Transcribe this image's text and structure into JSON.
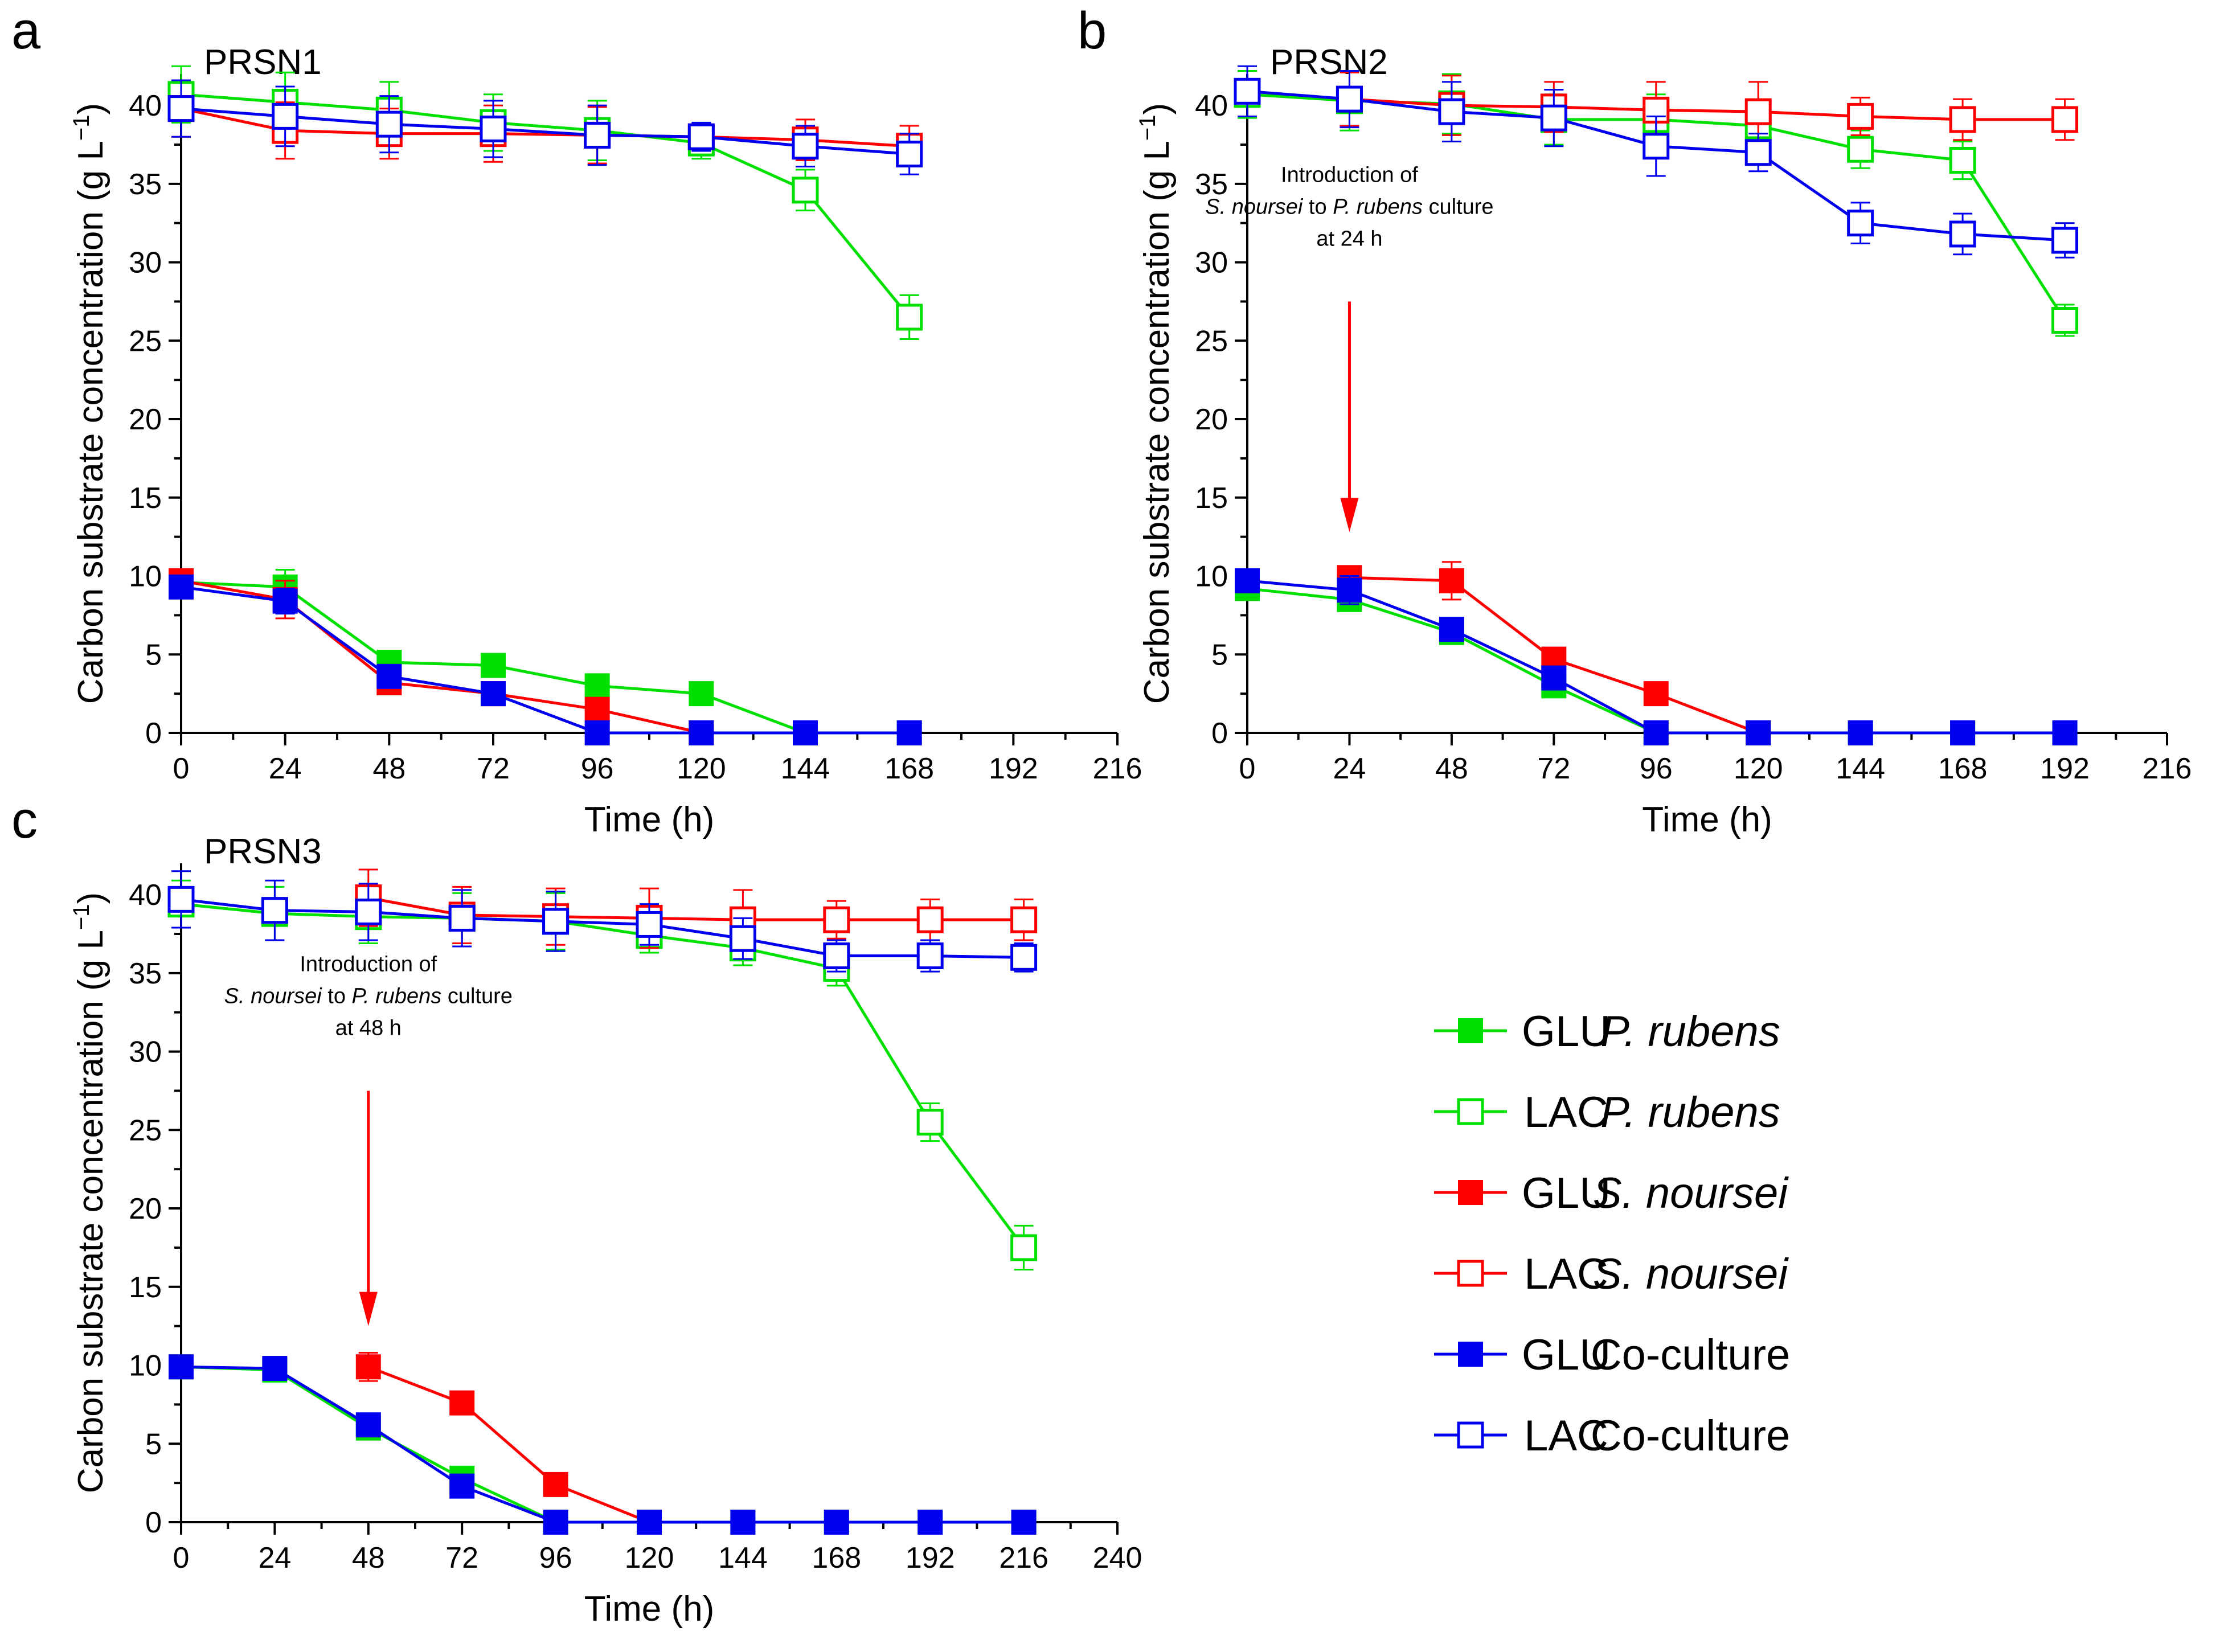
{
  "figure": {
    "legend": {
      "entries": [
        {
          "substrate": "GLU",
          "organism": "P. rubens",
          "color": "#00e000",
          "filled": true
        },
        {
          "substrate": "LAC",
          "organism": "P. rubens",
          "color": "#00e000",
          "filled": false
        },
        {
          "substrate": "GLU",
          "organism": "S. noursei",
          "color": "#ff0000",
          "filled": true
        },
        {
          "substrate": "LAC",
          "organism": "S. noursei",
          "color": "#ff0000",
          "filled": false
        },
        {
          "substrate": "GLU",
          "organism": "Co-culture",
          "color": "#0000ee",
          "filled": true
        },
        {
          "substrate": "LAC",
          "organism": "Co-culture",
          "color": "#0000ee",
          "filled": false
        }
      ]
    }
  },
  "chart_data": [
    {
      "type": "line",
      "panel_letter": "a",
      "title": "PRSN1",
      "xlabel": "Time (h)",
      "ylabel_text": "Carbon substrate concentration (g L",
      "ylabel_sup": "−1",
      "ylabel_close": ")",
      "xlim": [
        0,
        216
      ],
      "ylim": [
        0,
        42
      ],
      "xticks": [
        0,
        24,
        48,
        72,
        96,
        120,
        144,
        168,
        192,
        216
      ],
      "yticks": [
        0,
        5,
        10,
        15,
        20,
        25,
        30,
        35,
        40
      ],
      "annotation": null,
      "series": [
        {
          "name": "GLU P. rubens",
          "color": "#00e000",
          "filled": true,
          "x": [
            0,
            24,
            48,
            72,
            96,
            120,
            144,
            168
          ],
          "y": [
            9.6,
            9.3,
            4.5,
            4.3,
            3.0,
            2.5,
            0.0,
            0.0
          ],
          "err": [
            0.5,
            1.1,
            0.3,
            0.3,
            0.3,
            0.3,
            0,
            0
          ]
        },
        {
          "name": "LAC P. rubens",
          "color": "#00e000",
          "filled": false,
          "x": [
            0,
            24,
            48,
            72,
            96,
            120,
            144,
            168
          ],
          "y": [
            40.7,
            40.2,
            39.7,
            38.9,
            38.4,
            37.6,
            34.6,
            26.5
          ],
          "err": [
            1.8,
            1.9,
            1.8,
            1.8,
            1.9,
            1.0,
            1.3,
            1.4
          ]
        },
        {
          "name": "GLU S. noursei",
          "color": "#ff0000",
          "filled": true,
          "x": [
            0,
            24,
            48,
            72,
            96,
            120
          ],
          "y": [
            9.7,
            8.5,
            3.2,
            2.5,
            1.5,
            0.0
          ],
          "err": [
            0.5,
            1.2,
            0.3,
            0.3,
            0.3,
            0
          ]
        },
        {
          "name": "LAC S. noursei",
          "color": "#ff0000",
          "filled": false,
          "x": [
            0,
            24,
            48,
            72,
            96,
            120,
            144,
            168
          ],
          "y": [
            39.8,
            38.4,
            38.2,
            38.2,
            38.1,
            38.0,
            37.8,
            37.4
          ],
          "err": [
            1.8,
            1.8,
            1.6,
            1.8,
            1.8,
            0.8,
            1.3,
            1.3
          ]
        },
        {
          "name": "GLU Co-culture",
          "color": "#0000ee",
          "filled": true,
          "x": [
            0,
            24,
            48,
            72,
            96,
            120,
            144,
            168
          ],
          "y": [
            9.3,
            8.4,
            3.6,
            2.5,
            0.0,
            0.0,
            0.0,
            0.0
          ],
          "err": [
            0.5,
            0.8,
            0.3,
            0.3,
            0,
            0,
            0,
            0
          ]
        },
        {
          "name": "LAC Co-culture",
          "color": "#0000ee",
          "filled": false,
          "x": [
            0,
            24,
            48,
            72,
            96,
            120,
            144,
            168
          ],
          "y": [
            39.8,
            39.3,
            38.8,
            38.5,
            38.1,
            38.0,
            37.4,
            36.9
          ],
          "err": [
            1.8,
            1.9,
            1.8,
            1.8,
            1.9,
            0.9,
            1.3,
            1.3
          ]
        }
      ]
    },
    {
      "type": "line",
      "panel_letter": "b",
      "title": "PRSN2",
      "xlabel": "Time (h)",
      "ylabel_text": "Carbon substrate concentration (g L",
      "ylabel_sup": "−1",
      "ylabel_close": ")",
      "xlim": [
        0,
        216
      ],
      "ylim": [
        0,
        42
      ],
      "xticks": [
        0,
        24,
        48,
        72,
        96,
        120,
        144,
        168,
        192,
        216
      ],
      "yticks": [
        0,
        5,
        10,
        15,
        20,
        25,
        30,
        35,
        40
      ],
      "annotation": {
        "lines": [
          [
            {
              "text": "Introduction of",
              "italic": false
            }
          ],
          [
            {
              "text": "S. noursei",
              "italic": true
            },
            {
              "text": " to ",
              "italic": false
            },
            {
              "text": "P. rubens",
              "italic": true
            },
            {
              "text": " culture",
              "italic": false
            }
          ],
          [
            {
              "text": "at 24 h",
              "italic": false
            }
          ]
        ],
        "arrow_x": 24,
        "arrow_from_y": 27.5,
        "arrow_to_y": 12.8,
        "text_x": 24,
        "text_y": 31.5
      },
      "series": [
        {
          "name": "GLU P. rubens",
          "color": "#00e000",
          "filled": true,
          "x": [
            0,
            24,
            48,
            72,
            96,
            120,
            144,
            168,
            192
          ],
          "y": [
            9.2,
            8.5,
            6.4,
            3.0,
            0.0,
            0.0,
            0.0,
            0.0,
            0.0
          ],
          "err": [
            0.5,
            0.6,
            0.4,
            0.3,
            0,
            0,
            0,
            0,
            0
          ]
        },
        {
          "name": "LAC P. rubens",
          "color": "#00e000",
          "filled": false,
          "x": [
            0,
            24,
            48,
            72,
            96,
            120,
            144,
            168,
            192
          ],
          "y": [
            40.7,
            40.3,
            40.1,
            39.1,
            39.1,
            38.7,
            37.2,
            36.5,
            26.3
          ],
          "err": [
            1.5,
            1.9,
            1.9,
            1.6,
            1.6,
            1.6,
            1.2,
            1.2,
            1.0
          ]
        },
        {
          "name": "GLU S. noursei",
          "color": "#ff0000",
          "filled": true,
          "x": [
            24,
            48,
            72,
            96,
            120
          ],
          "y": [
            9.9,
            9.7,
            4.7,
            2.5,
            0.0
          ],
          "err": [
            0.7,
            1.2,
            0.3,
            0.3,
            0
          ]
        },
        {
          "name": "LAC S. noursei",
          "color": "#ff0000",
          "filled": false,
          "x": [
            24,
            48,
            72,
            96,
            120,
            144,
            168,
            192
          ],
          "y": [
            40.4,
            40.0,
            39.9,
            39.7,
            39.6,
            39.3,
            39.1,
            39.1
          ],
          "err": [
            1.7,
            1.9,
            1.6,
            1.8,
            1.9,
            1.2,
            1.3,
            1.3
          ]
        },
        {
          "name": "GLU Co-culture",
          "color": "#0000ee",
          "filled": true,
          "x": [
            0,
            24,
            48,
            72,
            96,
            120,
            144,
            168,
            192
          ],
          "y": [
            9.7,
            9.1,
            6.6,
            3.5,
            0.0,
            0.0,
            0.0,
            0.0,
            0.0
          ],
          "err": [
            0.7,
            0.9,
            0.4,
            0.3,
            0,
            0,
            0,
            0,
            0
          ]
        },
        {
          "name": "LAC Co-culture",
          "color": "#0000ee",
          "filled": false,
          "x": [
            0,
            24,
            48,
            72,
            96,
            120,
            144,
            168,
            192
          ],
          "y": [
            40.9,
            40.4,
            39.6,
            39.2,
            37.4,
            37.0,
            32.5,
            31.8,
            31.4
          ],
          "err": [
            1.6,
            1.8,
            1.9,
            1.8,
            1.9,
            1.2,
            1.3,
            1.3,
            1.1
          ]
        }
      ]
    },
    {
      "type": "line",
      "panel_letter": "c",
      "title": "PRSN3",
      "xlabel": "Time (h)",
      "ylabel_text": "Carbon substrate concentration (g L",
      "ylabel_sup": "−1",
      "ylabel_close": ")",
      "xlim": [
        0,
        240
      ],
      "ylim": [
        0,
        42
      ],
      "xticks": [
        0,
        24,
        48,
        72,
        96,
        120,
        144,
        168,
        192,
        216,
        240
      ],
      "yticks": [
        0,
        5,
        10,
        15,
        20,
        25,
        30,
        35,
        40
      ],
      "annotation": {
        "lines": [
          [
            {
              "text": "Introduction of",
              "italic": false
            }
          ],
          [
            {
              "text": "S. noursei",
              "italic": true
            },
            {
              "text": " to ",
              "italic": false
            },
            {
              "text": "P. rubens",
              "italic": true
            },
            {
              "text": " culture",
              "italic": false
            }
          ],
          [
            {
              "text": "at 48 h",
              "italic": false
            }
          ]
        ],
        "arrow_x": 48,
        "arrow_from_y": 27.5,
        "arrow_to_y": 12.5,
        "text_x": 48,
        "text_y": 31.5
      },
      "series": [
        {
          "name": "GLU P. rubens",
          "color": "#00e000",
          "filled": true,
          "x": [
            0,
            24,
            48,
            72,
            96,
            120,
            144,
            168,
            192,
            216
          ],
          "y": [
            9.9,
            9.7,
            6.0,
            2.8,
            0.0,
            0.0,
            0.0,
            0.0,
            0.0,
            0.0
          ],
          "err": [
            0.5,
            0.6,
            0.4,
            0.3,
            0,
            0,
            0,
            0,
            0,
            0
          ]
        },
        {
          "name": "LAC P. rubens",
          "color": "#00e000",
          "filled": false,
          "x": [
            0,
            24,
            48,
            72,
            96,
            120,
            144,
            168,
            192,
            216
          ],
          "y": [
            39.4,
            38.8,
            38.6,
            38.5,
            38.3,
            37.4,
            36.6,
            35.3,
            25.5,
            17.5
          ],
          "err": [
            1.5,
            1.7,
            1.7,
            1.6,
            1.8,
            1.1,
            1.1,
            1.1,
            1.2,
            1.4
          ]
        },
        {
          "name": "GLU S. noursei",
          "color": "#ff0000",
          "filled": true,
          "x": [
            48,
            72,
            96,
            120
          ],
          "y": [
            9.9,
            7.6,
            2.4,
            0.0
          ],
          "err": [
            0.9,
            0.3,
            0.3,
            0
          ]
        },
        {
          "name": "LAC S. noursei",
          "color": "#ff0000",
          "filled": false,
          "x": [
            48,
            72,
            96,
            120,
            144,
            168,
            192,
            216
          ],
          "y": [
            39.8,
            38.7,
            38.6,
            38.5,
            38.4,
            38.4,
            38.4,
            38.4
          ],
          "err": [
            1.8,
            1.8,
            1.8,
            1.9,
            1.9,
            1.2,
            1.3,
            1.3
          ]
        },
        {
          "name": "GLU Co-culture",
          "color": "#0000ee",
          "filled": true,
          "x": [
            0,
            24,
            48,
            72,
            96,
            120,
            144,
            168,
            192,
            216
          ],
          "y": [
            9.9,
            9.8,
            6.2,
            2.3,
            0.0,
            0.0,
            0.0,
            0.0,
            0.0,
            0.0
          ],
          "err": [
            0.5,
            0.6,
            0.4,
            0.3,
            0,
            0,
            0,
            0,
            0,
            0
          ]
        },
        {
          "name": "LAC Co-culture",
          "color": "#0000ee",
          "filled": false,
          "x": [
            0,
            24,
            48,
            72,
            96,
            120,
            144,
            168,
            192,
            216
          ],
          "y": [
            39.7,
            39.0,
            38.9,
            38.5,
            38.3,
            38.1,
            37.2,
            36.1,
            36.1,
            36.0
          ],
          "err": [
            1.8,
            1.9,
            1.8,
            1.8,
            1.9,
            1.3,
            1.3,
            1.0,
            1.0,
            0.9
          ]
        }
      ]
    }
  ]
}
